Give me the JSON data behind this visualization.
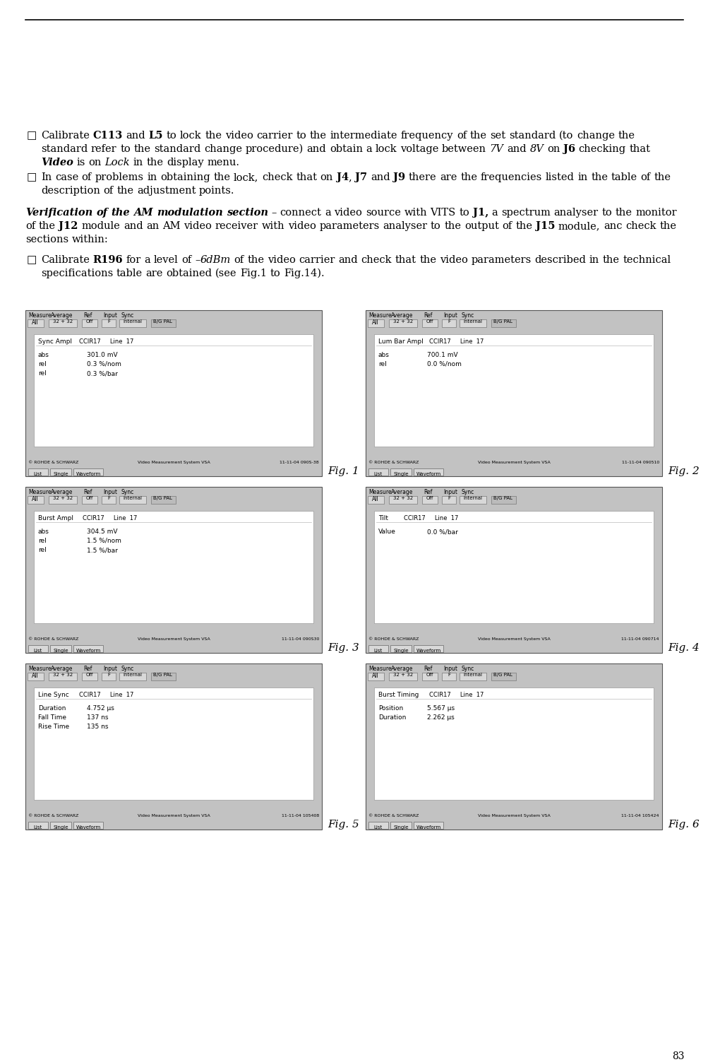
{
  "page_number": "83",
  "background_color": "#ffffff",
  "figures": [
    {
      "id": "Fig. 1",
      "title": "Sync Ampl",
      "subtitle": "CCIR17     Line  17",
      "rows": [
        {
          "label": "abs",
          "value": "301.0 mV"
        },
        {
          "label": "rel",
          "value": "0.3 %/nom"
        },
        {
          "label": "rel",
          "value": "0.3 %/bar"
        }
      ],
      "footer_right": "11-11-04 090S-38"
    },
    {
      "id": "Fig. 2",
      "title": "Lum Bar Ampl",
      "subtitle": "CCIR17     Line  17",
      "rows": [
        {
          "label": "abs",
          "value": "700.1 mV"
        },
        {
          "label": "rel",
          "value": "0.0 %/nom"
        }
      ],
      "footer_right": "11-11-04 090510"
    },
    {
      "id": "Fig. 3",
      "title": "Burst Ampl",
      "subtitle": "CCIR17     Line  17",
      "rows": [
        {
          "label": "abs",
          "value": "304.5 mV"
        },
        {
          "label": "rel",
          "value": "1.5 %/nom"
        },
        {
          "label": "rel",
          "value": "1.5 %/bar"
        }
      ],
      "footer_right": "11-11-04 090S30"
    },
    {
      "id": "Fig. 4",
      "title": "Tilt",
      "subtitle": "CCIR17     Line  17",
      "rows": [
        {
          "label": "Value",
          "value": "0.0 %/bar"
        }
      ],
      "footer_right": "11-11-04 090714"
    },
    {
      "id": "Fig. 5",
      "title": "Line Sync",
      "subtitle": "CCIR17     Line  17",
      "rows": [
        {
          "label": "Duration",
          "value": "4.752 μs"
        },
        {
          "label": "Fall Time",
          "value": "137 ns"
        },
        {
          "label": "Rise Time",
          "value": "135 ns"
        }
      ],
      "footer_right": "11-11-04 105408"
    },
    {
      "id": "Fig. 6",
      "title": "Burst Timing",
      "subtitle": "CCIR17     Line  17",
      "rows": [
        {
          "label": "Position",
          "value": "5.567 μs"
        },
        {
          "label": "Duration",
          "value": "2.262 μs"
        }
      ],
      "footer_right": "11-11-04 105424"
    }
  ]
}
